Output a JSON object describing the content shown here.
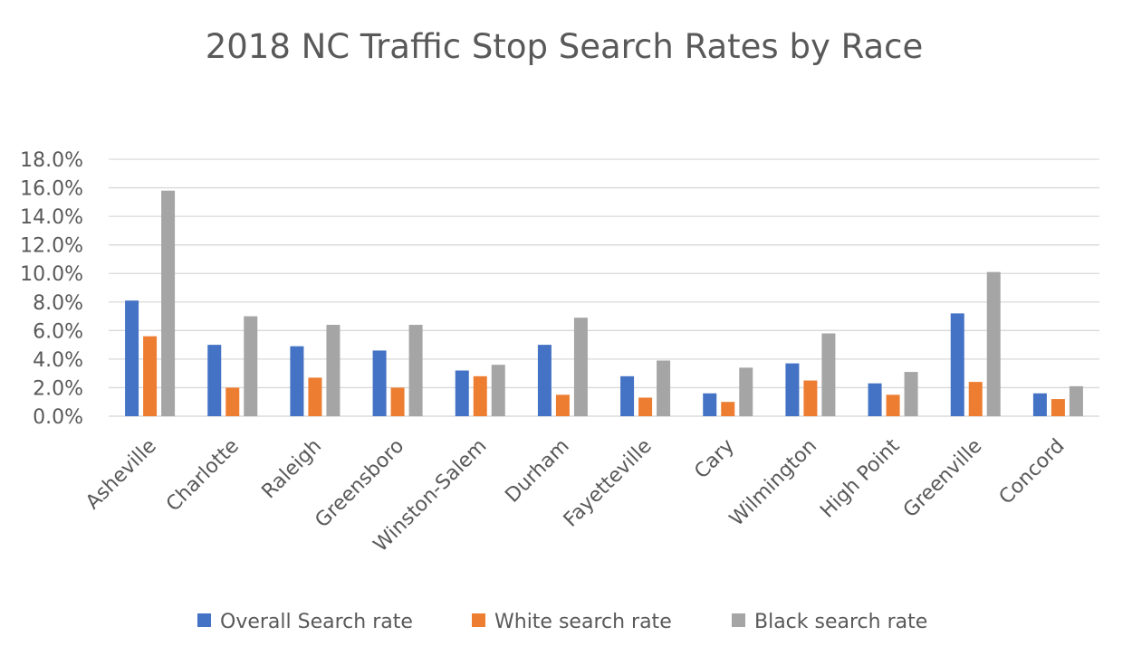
{
  "chart_data": {
    "type": "bar",
    "title": "2018 NC Traffic Stop Search Rates by Race",
    "categories": [
      "Asheville",
      "Charlotte",
      "Raleigh",
      "Greensboro",
      "Winston-Salem",
      "Durham",
      "Fayetteville",
      "Cary",
      "Wilmington",
      "High Point",
      "Greenville",
      "Concord"
    ],
    "series": [
      {
        "name": "Overall Search rate",
        "color": "#4472C4",
        "values": [
          8.1,
          5.0,
          4.9,
          4.6,
          3.2,
          5.0,
          2.8,
          1.6,
          3.7,
          2.3,
          7.2,
          1.6
        ]
      },
      {
        "name": "White search rate",
        "color": "#ED7D31",
        "values": [
          5.6,
          2.0,
          2.7,
          2.0,
          2.8,
          1.5,
          1.3,
          1.0,
          2.5,
          1.5,
          2.4,
          1.2
        ]
      },
      {
        "name": "Black search rate",
        "color": "#A5A5A5",
        "values": [
          15.8,
          7.0,
          6.4,
          6.4,
          3.6,
          6.9,
          3.9,
          3.4,
          5.8,
          3.1,
          10.1,
          2.1
        ]
      }
    ],
    "ylim": [
      0,
      18
    ],
    "yticks": [
      "0.0%",
      "2.0%",
      "4.0%",
      "6.0%",
      "8.0%",
      "10.0%",
      "12.0%",
      "14.0%",
      "16.0%",
      "18.0%"
    ],
    "grid": true,
    "legend_position": "bottom"
  }
}
